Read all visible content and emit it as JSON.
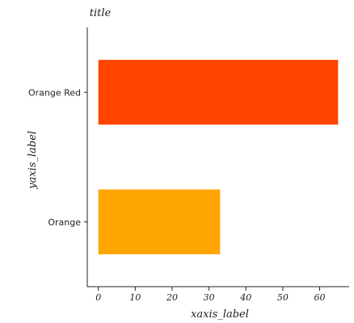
{
  "chart_data": {
    "type": "bar",
    "orientation": "horizontal",
    "title": "title",
    "xlabel": "xaxis_label",
    "ylabel": "yaxis_label",
    "categories": [
      "Orange Red",
      "Orange"
    ],
    "values": [
      65,
      33
    ],
    "colors": [
      "#ff4500",
      "#ffa500"
    ],
    "xlim": [
      -3,
      68
    ],
    "xticks": [
      0,
      10,
      20,
      30,
      40,
      50,
      60
    ],
    "xtick_labels": [
      "0",
      "10",
      "20",
      "30",
      "40",
      "50",
      "60"
    ],
    "grid": false,
    "legend": "none"
  }
}
